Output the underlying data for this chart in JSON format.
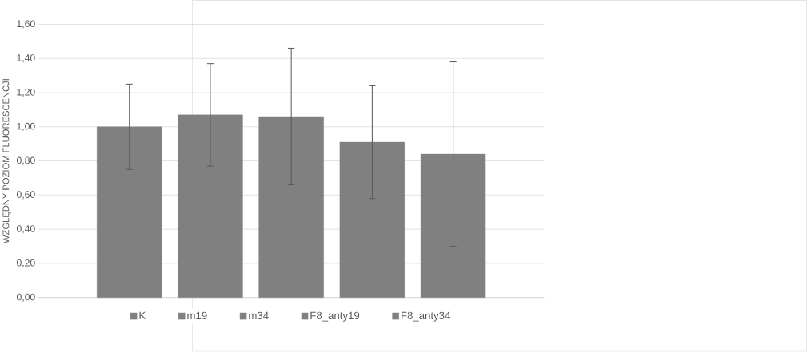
{
  "chart_data": {
    "type": "bar",
    "ylabel": "WZGLĘDNY POZIOM FLUORESCENCJI",
    "categories": [
      null
    ],
    "series": [
      {
        "name": "K",
        "color": "#808080",
        "values": [
          1.0
        ],
        "errors": [
          0.25
        ]
      },
      {
        "name": "m19",
        "color": "#808080",
        "values": [
          1.07
        ],
        "errors": [
          0.3
        ]
      },
      {
        "name": "m34",
        "color": "#808080",
        "values": [
          1.06
        ],
        "errors": [
          0.4
        ]
      },
      {
        "name": "F8_anty19",
        "color": "#808080",
        "values": [
          0.91
        ],
        "errors": [
          0.33
        ]
      },
      {
        "name": "F8_anty34",
        "color": "#808080",
        "values": [
          0.84
        ],
        "errors": [
          0.54
        ]
      }
    ],
    "ylim": [
      0,
      1.6
    ],
    "yticks": [
      {
        "value": 0,
        "label": "0,00"
      },
      {
        "value": 0.2,
        "label": "0,20"
      },
      {
        "value": 0.4,
        "label": "0,40"
      },
      {
        "value": 0.6,
        "label": "0,60"
      },
      {
        "value": 0.8,
        "label": "0,80"
      },
      {
        "value": 1.0,
        "label": "1,00"
      },
      {
        "value": 1.2,
        "label": "1,20"
      },
      {
        "value": 1.4,
        "label": "1,40"
      },
      {
        "value": 1.6,
        "label": "1,60"
      }
    ],
    "grid": "y",
    "legend": "bottom"
  }
}
